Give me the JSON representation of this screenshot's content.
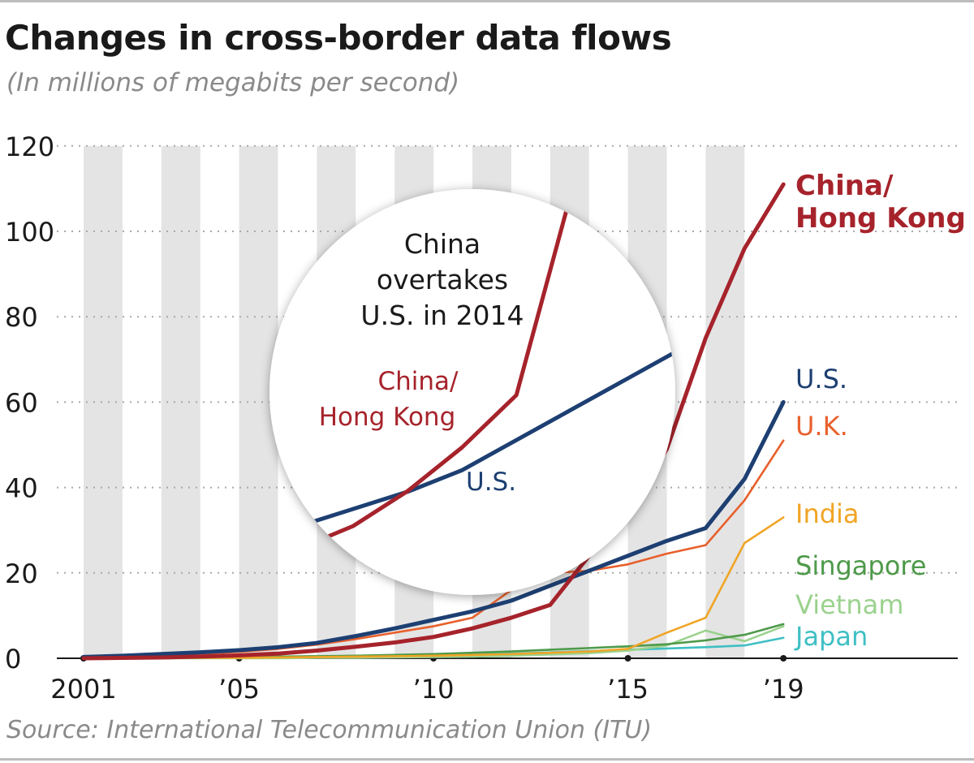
{
  "chart_data": {
    "type": "line",
    "title": "Changes in cross-border data flows",
    "subtitle": "(In millions of megabits per second)",
    "source": "Source: International Telecommunication Union (ITU)",
    "xlabel": "",
    "ylabel": "",
    "xlim": [
      2001,
      2023
    ],
    "ylim": [
      0,
      120
    ],
    "y_ticks": [
      0,
      20,
      40,
      60,
      80,
      100,
      120
    ],
    "x_ticks": [
      {
        "value": 2001,
        "label": "2001"
      },
      {
        "value": 2005,
        "label": "’05"
      },
      {
        "value": 2010,
        "label": "’10"
      },
      {
        "value": 2015,
        "label": "’15"
      },
      {
        "value": 2019,
        "label": "’19"
      }
    ],
    "grid": "horizontal dotted, alternating vertical bands",
    "legend": "direct labels at line ends (right)",
    "x": [
      2001,
      2002,
      2003,
      2004,
      2005,
      2006,
      2007,
      2008,
      2009,
      2010,
      2011,
      2012,
      2013,
      2014,
      2015,
      2016,
      2017,
      2018,
      2019
    ],
    "series": [
      {
        "name": "Japan",
        "label": "Japan",
        "color": "#3fbfc4",
        "values": [
          0,
          0,
          0,
          0.1,
          0.1,
          0.2,
          0.3,
          0.4,
          0.5,
          0.7,
          0.9,
          1.1,
          1.4,
          1.7,
          2.0,
          2.3,
          2.6,
          3.0,
          4.8
        ]
      },
      {
        "name": "Vietnam",
        "label": "Vietnam",
        "color": "#9bd28e",
        "values": [
          0,
          0,
          0,
          0,
          0,
          0,
          0.1,
          0.1,
          0.2,
          0.3,
          0.4,
          0.6,
          0.9,
          1.2,
          1.8,
          3.0,
          6.5,
          4.0,
          7.5
        ]
      },
      {
        "name": "Singapore",
        "label": "Singapore",
        "color": "#4e9a4a",
        "values": [
          0.1,
          0.1,
          0.2,
          0.2,
          0.3,
          0.4,
          0.5,
          0.6,
          0.8,
          1.0,
          1.3,
          1.6,
          2.0,
          2.4,
          2.8,
          3.3,
          4.2,
          5.5,
          8.0
        ]
      },
      {
        "name": "India",
        "label": "India",
        "color": "#f0a526",
        "values": [
          0,
          0,
          0,
          0.1,
          0.1,
          0.2,
          0.3,
          0.4,
          0.5,
          0.6,
          0.8,
          1.0,
          1.3,
          1.6,
          2.2,
          6.0,
          9.5,
          27.0,
          33.0
        ]
      },
      {
        "name": "U.K.",
        "label": "U.K.",
        "color": "#e8602c",
        "values": [
          0.2,
          0.4,
          0.7,
          1.0,
          1.5,
          2.2,
          3.2,
          4.5,
          6.0,
          7.5,
          9.5,
          16.0,
          20.0,
          20.5,
          22.0,
          24.5,
          26.5,
          37.0,
          51.0
        ]
      },
      {
        "name": "U.S.",
        "label": "U.S.",
        "color": "#1d3f72",
        "values": [
          0.3,
          0.6,
          1.0,
          1.4,
          1.9,
          2.6,
          3.6,
          5.2,
          7.0,
          9.0,
          11.0,
          13.5,
          17.0,
          20.5,
          24.0,
          27.5,
          30.5,
          42.0,
          60.0
        ]
      },
      {
        "name": "China/Hong Kong",
        "label": [
          "China/",
          "Hong Kong"
        ],
        "color": "#a6232b",
        "values": [
          0,
          0.1,
          0.2,
          0.4,
          0.7,
          1.1,
          1.8,
          2.7,
          3.7,
          5.0,
          7.0,
          9.5,
          12.5,
          24.0,
          34.5,
          49.0,
          75.0,
          96.0,
          111.0
        ]
      }
    ],
    "annotation": {
      "text": [
        "China",
        "overtakes",
        "U.S. in 2014"
      ],
      "china_label": [
        "China/",
        "Hong Kong"
      ],
      "us_label": "U.S."
    }
  }
}
